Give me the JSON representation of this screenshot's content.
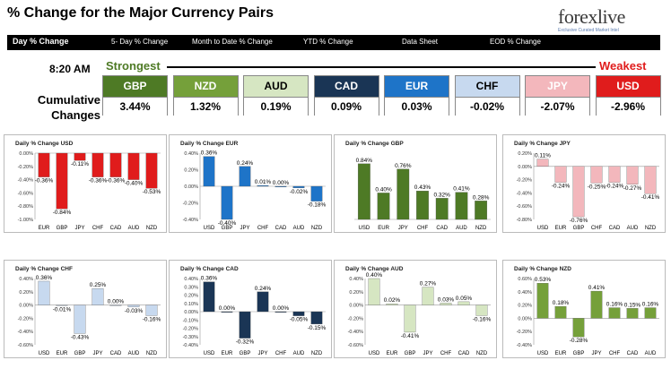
{
  "title": "% Change for the Major Currency Pairs",
  "logo": {
    "text": "forexlive",
    "tagline": "Exclusive Curated Market Intel"
  },
  "tabs": [
    {
      "label": "Day % Change",
      "active": true
    },
    {
      "label": "5- Day % Change",
      "active": false
    },
    {
      "label": "Month to Date % Change",
      "active": false
    },
    {
      "label": "YTD % Change",
      "active": false
    },
    {
      "label": "Data Sheet",
      "active": false
    },
    {
      "label": "EOD % Change",
      "active": false
    }
  ],
  "time": "8:20 AM",
  "strongest_label": "Strongest",
  "weakest_label": "Weakest",
  "cumulative_label_line1": "Cumulative",
  "cumulative_label_line2": "Changes",
  "currencies": [
    {
      "code": "GBP",
      "value": "3.44%",
      "header_bg": "#4e7a25",
      "header_fg": "#ffffff"
    },
    {
      "code": "NZD",
      "value": "1.32%",
      "header_bg": "#75a03a",
      "header_fg": "#ffffff"
    },
    {
      "code": "AUD",
      "value": "0.19%",
      "header_bg": "#d6e6c2",
      "header_fg": "#000000"
    },
    {
      "code": "CAD",
      "value": "0.09%",
      "header_bg": "#1a3555",
      "header_fg": "#ffffff"
    },
    {
      "code": "EUR",
      "value": "0.03%",
      "header_bg": "#1e74c8",
      "header_fg": "#ffffff"
    },
    {
      "code": "CHF",
      "value": "-0.02%",
      "header_bg": "#c7d9ef",
      "header_fg": "#000000"
    },
    {
      "code": "JPY",
      "value": "-2.07%",
      "header_bg": "#f3b7bc",
      "header_fg": "#ffffff"
    },
    {
      "code": "USD",
      "value": "-2.96%",
      "header_bg": "#e01c1c",
      "header_fg": "#ffffff"
    }
  ],
  "chart_data": [
    {
      "type": "bar",
      "title": "Daily % Change USD",
      "color": "#e01c1c",
      "categories": [
        "EUR",
        "GBP",
        "JPY",
        "CHF",
        "CAD",
        "AUD",
        "NZD"
      ],
      "values": [
        -0.36,
        -0.84,
        -0.11,
        -0.36,
        -0.36,
        -0.4,
        -0.53
      ],
      "labels": [
        "-0.36%",
        "-0.84%",
        "-0.11%",
        "-0.36%",
        "-0.36%",
        "-0.40%",
        "-0.53%"
      ],
      "yticks": [
        "0.00%",
        "-0.20%",
        "-0.40%",
        "-0.60%",
        "-0.80%",
        "-1.00%"
      ],
      "ylim": [
        -1.0,
        0.0
      ]
    },
    {
      "type": "bar",
      "title": "Daily % Change EUR",
      "color": "#1e74c8",
      "categories": [
        "USD",
        "GBP",
        "JPY",
        "CHF",
        "CAD",
        "AUD",
        "NZD"
      ],
      "values": [
        0.36,
        -0.4,
        0.24,
        0.01,
        0.0,
        -0.02,
        -0.18
      ],
      "labels": [
        "0.36%",
        "-0.40%",
        "0.24%",
        "0.01%",
        "0.00%",
        "-0.02%",
        "-0.18%"
      ],
      "yticks": [
        "0.40%",
        "0.20%",
        "0.00%",
        "-0.20%",
        "-0.40%"
      ],
      "ylim": [
        -0.4,
        0.4
      ]
    },
    {
      "type": "bar",
      "title": "Daily % Change GBP",
      "color": "#4e7a25",
      "categories": [
        "USD",
        "EUR",
        "JPY",
        "CHF",
        "CAD",
        "AUD",
        "NZD"
      ],
      "values": [
        0.84,
        0.4,
        0.76,
        0.43,
        0.32,
        0.41,
        0.28
      ],
      "labels": [
        "0.84%",
        "0.40%",
        "0.76%",
        "0.43%",
        "0.32%",
        "0.41%",
        "0.28%"
      ],
      "yticks": [],
      "ylim": [
        0.0,
        1.0
      ]
    },
    {
      "type": "bar",
      "title": "Daily % Change JPY",
      "color": "#f3b7bc",
      "categories": [
        "USD",
        "EUR",
        "GBP",
        "CHF",
        "CAD",
        "AUD",
        "NZD"
      ],
      "values": [
        0.11,
        -0.24,
        -0.76,
        -0.25,
        -0.24,
        -0.27,
        -0.41
      ],
      "labels": [
        "0.11%",
        "-0.24%",
        "-0.76%",
        "-0.25%",
        "-0.24%",
        "-0.27%",
        "-0.41%"
      ],
      "yticks": [
        "0.20%",
        "0.00%",
        "-0.20%",
        "-0.40%",
        "-0.60%",
        "-0.80%"
      ],
      "ylim": [
        -0.8,
        0.2
      ]
    },
    {
      "type": "bar",
      "title": "Daily % Change CHF",
      "color": "#c7d9ef",
      "categories": [
        "USD",
        "EUR",
        "GBP",
        "JPY",
        "CAD",
        "AUD",
        "NZD"
      ],
      "values": [
        0.36,
        -0.01,
        -0.43,
        0.25,
        0.0,
        -0.03,
        -0.16
      ],
      "labels": [
        "0.36%",
        "-0.01%",
        "-0.43%",
        "0.25%",
        "0.00%",
        "-0.03%",
        "-0.16%"
      ],
      "yticks": [
        "0.40%",
        "0.20%",
        "0.00%",
        "-0.20%",
        "-0.40%",
        "-0.60%"
      ],
      "ylim": [
        -0.6,
        0.4
      ]
    },
    {
      "type": "bar",
      "title": "Daily % Change CAD",
      "color": "#1a3555",
      "categories": [
        "USD",
        "EUR",
        "GBP",
        "JPY",
        "CHF",
        "AUD",
        "NZD"
      ],
      "values": [
        0.36,
        0.0,
        -0.32,
        0.24,
        0.0,
        -0.05,
        -0.15
      ],
      "labels": [
        "0.36%",
        "0.00%",
        "-0.32%",
        "0.24%",
        "0.00%",
        "-0.05%",
        "-0.15%"
      ],
      "yticks": [
        "0.40%",
        "0.30%",
        "0.20%",
        "0.10%",
        "0.00%",
        "-0.10%",
        "-0.20%",
        "-0.30%",
        "-0.40%"
      ],
      "ylim": [
        -0.4,
        0.4
      ]
    },
    {
      "type": "bar",
      "title": "Daily % Change AUD",
      "color": "#d6e6c2",
      "categories": [
        "USD",
        "EUR",
        "GBP",
        "JPY",
        "CHF",
        "CAD",
        "NZD"
      ],
      "values": [
        0.4,
        0.02,
        -0.41,
        0.27,
        0.03,
        0.05,
        -0.16
      ],
      "labels": [
        "0.40%",
        "0.02%",
        "-0.41%",
        "0.27%",
        "0.03%",
        "0.05%",
        "-0.16%"
      ],
      "yticks": [
        "0.40%",
        "0.20%",
        "0.00%",
        "-0.20%",
        "-0.40%",
        "-0.60%"
      ],
      "ylim": [
        -0.6,
        0.4
      ]
    },
    {
      "type": "bar",
      "title": "Daily % Change NZD",
      "color": "#75a03a",
      "categories": [
        "USD",
        "EUR",
        "GBP",
        "JPY",
        "CHF",
        "CAD",
        "AUD"
      ],
      "values": [
        0.53,
        0.18,
        -0.28,
        0.41,
        0.16,
        0.15,
        0.16
      ],
      "labels": [
        "0.53%",
        "0.18%",
        "-0.28%",
        "0.41%",
        "0.16%",
        "0.15%",
        "0.16%"
      ],
      "yticks": [
        "0.60%",
        "0.40%",
        "0.20%",
        "0.00%",
        "-0.20%",
        "-0.40%"
      ],
      "ylim": [
        -0.4,
        0.6
      ]
    }
  ]
}
